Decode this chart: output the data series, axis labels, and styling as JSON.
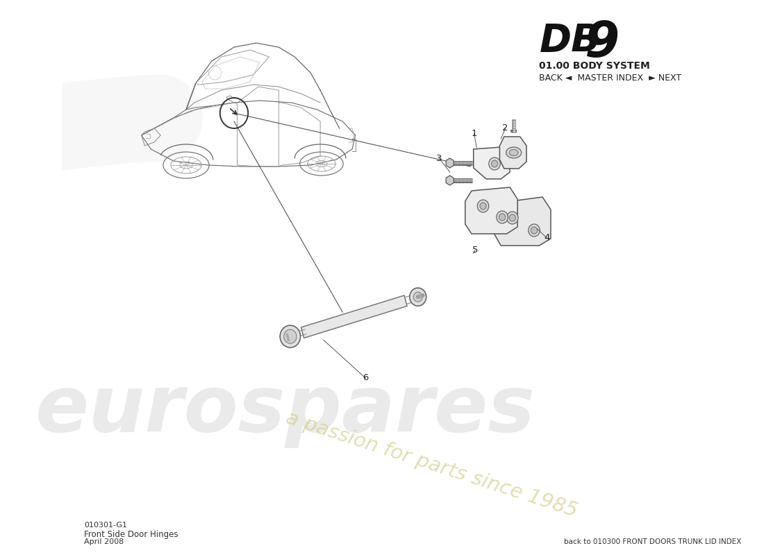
{
  "title_db": "DB",
  "title_9": "9",
  "title_system": "01.00 BODY SYSTEM",
  "nav_text": "BACK ◄  MASTER INDEX  ► NEXT",
  "doc_number": "010301-G1",
  "doc_name": "Front Side Door Hinges",
  "doc_date": "April 2008",
  "back_link": "back to 010300 FRONT DOORS TRUNK LID INDEX",
  "bg_color": "#ffffff",
  "line_color": "#555555",
  "watermark_euro": "eurospares",
  "watermark_passion": "a passion for parts since 1985",
  "watermark_euro_color": "#cccccc",
  "watermark_passion_color": "#d4cc88",
  "watermark_alpha": 0.4,
  "swoosh_color": "#dddddd",
  "part_labels": [
    "1",
    "2",
    "3",
    "4",
    "5",
    "6"
  ]
}
